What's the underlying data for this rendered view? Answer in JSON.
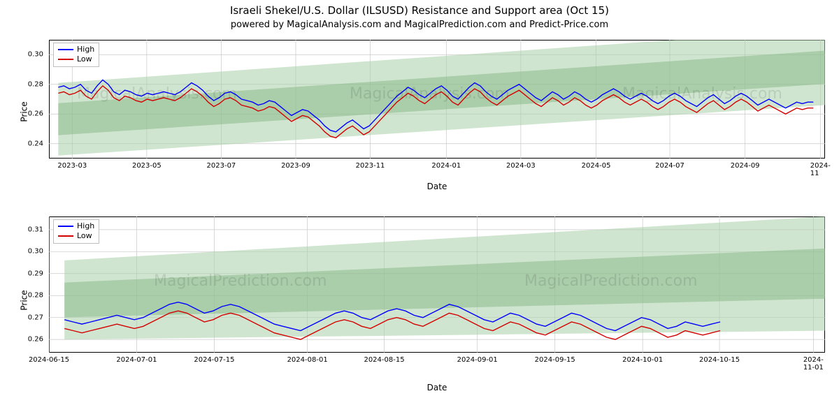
{
  "title": "Israeli Shekel/U.S. Dollar (ILSUSD) Resistance and Support area (Oct 15)",
  "subtitle": "powered by MagicalAnalysis.com and MagicalPrediction.com and Predict-Price.com",
  "legend": {
    "high": "High",
    "low": "Low"
  },
  "axis": {
    "x_label": "Date",
    "y_label": "Price"
  },
  "colors": {
    "high_line": "#0000ff",
    "low_line": "#d40000",
    "cone_fill": "#a9cfa9",
    "cone_fill_dark": "#8bb98b",
    "grid": "#c8c8c8",
    "axis_line": "#000000",
    "background": "#ffffff",
    "watermark": "#000000"
  },
  "watermarks": {
    "top": [
      "MagicalAnalysis.com",
      "MagicalAnalysis.com",
      "MagicalAnalysis.com"
    ],
    "bottom": [
      "MagicalPrediction.com",
      "MagicalPrediction.com"
    ]
  },
  "chart_top": {
    "type": "line",
    "ylim": [
      0.23,
      0.31
    ],
    "yticks": [
      0.24,
      0.26,
      0.28,
      0.3
    ],
    "xticks": [
      "2023-03",
      "2023-05",
      "2023-07",
      "2023-09",
      "2023-11",
      "2024-01",
      "2024-03",
      "2024-05",
      "2024-07",
      "2024-09",
      "2024-11"
    ],
    "xtick_pos": [
      0.03,
      0.126,
      0.222,
      0.318,
      0.414,
      0.512,
      0.608,
      0.705,
      0.8,
      0.897,
      0.994
    ],
    "cone_upper": {
      "y_start": 0.281,
      "y_end": 0.317
    },
    "cone_lower": {
      "y_start": 0.232,
      "y_end": 0.266
    },
    "cone_x_start": 0.012,
    "high": [
      0.278,
      0.279,
      0.277,
      0.278,
      0.28,
      0.276,
      0.274,
      0.279,
      0.283,
      0.28,
      0.275,
      0.273,
      0.276,
      0.275,
      0.273,
      0.272,
      0.274,
      0.273,
      0.274,
      0.275,
      0.274,
      0.273,
      0.275,
      0.278,
      0.281,
      0.279,
      0.276,
      0.272,
      0.269,
      0.271,
      0.274,
      0.275,
      0.273,
      0.27,
      0.269,
      0.268,
      0.266,
      0.267,
      0.269,
      0.268,
      0.265,
      0.262,
      0.259,
      0.261,
      0.263,
      0.262,
      0.259,
      0.256,
      0.252,
      0.249,
      0.248,
      0.251,
      0.254,
      0.256,
      0.253,
      0.25,
      0.252,
      0.256,
      0.26,
      0.264,
      0.268,
      0.272,
      0.275,
      0.278,
      0.276,
      0.273,
      0.271,
      0.274,
      0.277,
      0.279,
      0.276,
      0.272,
      0.27,
      0.274,
      0.278,
      0.281,
      0.279,
      0.275,
      0.272,
      0.27,
      0.273,
      0.276,
      0.278,
      0.28,
      0.277,
      0.274,
      0.271,
      0.269,
      0.272,
      0.275,
      0.273,
      0.27,
      0.272,
      0.275,
      0.273,
      0.27,
      0.268,
      0.27,
      0.273,
      0.275,
      0.277,
      0.275,
      0.272,
      0.27,
      0.272,
      0.274,
      0.272,
      0.269,
      0.267,
      0.269,
      0.272,
      0.274,
      0.272,
      0.269,
      0.267,
      0.265,
      0.268,
      0.271,
      0.273,
      0.27,
      0.267,
      0.269,
      0.272,
      0.274,
      0.272,
      0.269,
      0.266,
      0.268,
      0.27,
      0.268,
      0.266,
      0.264,
      0.266,
      0.268,
      0.267,
      0.268,
      0.268
    ],
    "low": [
      0.274,
      0.275,
      0.273,
      0.274,
      0.276,
      0.272,
      0.27,
      0.275,
      0.279,
      0.276,
      0.271,
      0.269,
      0.272,
      0.271,
      0.269,
      0.268,
      0.27,
      0.269,
      0.27,
      0.271,
      0.27,
      0.269,
      0.271,
      0.274,
      0.277,
      0.275,
      0.272,
      0.268,
      0.265,
      0.267,
      0.27,
      0.271,
      0.269,
      0.266,
      0.265,
      0.264,
      0.262,
      0.263,
      0.265,
      0.264,
      0.261,
      0.258,
      0.255,
      0.257,
      0.259,
      0.258,
      0.255,
      0.252,
      0.248,
      0.245,
      0.244,
      0.247,
      0.25,
      0.252,
      0.249,
      0.246,
      0.248,
      0.252,
      0.256,
      0.26,
      0.264,
      0.268,
      0.271,
      0.274,
      0.272,
      0.269,
      0.267,
      0.27,
      0.273,
      0.275,
      0.272,
      0.268,
      0.266,
      0.27,
      0.274,
      0.277,
      0.275,
      0.271,
      0.268,
      0.266,
      0.269,
      0.272,
      0.274,
      0.276,
      0.273,
      0.27,
      0.267,
      0.265,
      0.268,
      0.271,
      0.269,
      0.266,
      0.268,
      0.271,
      0.269,
      0.266,
      0.264,
      0.266,
      0.269,
      0.271,
      0.273,
      0.271,
      0.268,
      0.266,
      0.268,
      0.27,
      0.268,
      0.265,
      0.263,
      0.265,
      0.268,
      0.27,
      0.268,
      0.265,
      0.263,
      0.261,
      0.264,
      0.267,
      0.269,
      0.266,
      0.263,
      0.265,
      0.268,
      0.27,
      0.268,
      0.265,
      0.262,
      0.264,
      0.266,
      0.264,
      0.262,
      0.26,
      0.262,
      0.264,
      0.263,
      0.264,
      0.264
    ]
  },
  "chart_bottom": {
    "type": "line",
    "ylim": [
      0.254,
      0.316
    ],
    "yticks": [
      0.26,
      0.27,
      0.28,
      0.29,
      0.3,
      0.31
    ],
    "xticks": [
      "2024-06-15",
      "2024-07-01",
      "2024-07-15",
      "2024-08-01",
      "2024-08-15",
      "2024-09-01",
      "2024-09-15",
      "2024-10-01",
      "2024-10-15",
      "2024-11-01"
    ],
    "xtick_pos": [
      0.0,
      0.113,
      0.213,
      0.333,
      0.432,
      0.552,
      0.652,
      0.765,
      0.864,
      0.985
    ],
    "cone_upper": {
      "y_start": 0.296,
      "y_end": 0.316
    },
    "cone_lower": {
      "y_start": 0.26,
      "y_end": 0.264
    },
    "cone_x_start": 0.02,
    "series_x_end": 0.865,
    "high": [
      0.269,
      0.268,
      0.267,
      0.268,
      0.269,
      0.27,
      0.271,
      0.27,
      0.269,
      0.27,
      0.272,
      0.274,
      0.276,
      0.277,
      0.276,
      0.274,
      0.272,
      0.273,
      0.275,
      0.276,
      0.275,
      0.273,
      0.271,
      0.269,
      0.267,
      0.266,
      0.265,
      0.264,
      0.266,
      0.268,
      0.27,
      0.272,
      0.273,
      0.272,
      0.27,
      0.269,
      0.271,
      0.273,
      0.274,
      0.273,
      0.271,
      0.27,
      0.272,
      0.274,
      0.276,
      0.275,
      0.273,
      0.271,
      0.269,
      0.268,
      0.27,
      0.272,
      0.271,
      0.269,
      0.267,
      0.266,
      0.268,
      0.27,
      0.272,
      0.271,
      0.269,
      0.267,
      0.265,
      0.264,
      0.266,
      0.268,
      0.27,
      0.269,
      0.267,
      0.265,
      0.266,
      0.268,
      0.267,
      0.266,
      0.267,
      0.268
    ],
    "low": [
      0.265,
      0.264,
      0.263,
      0.264,
      0.265,
      0.266,
      0.267,
      0.266,
      0.265,
      0.266,
      0.268,
      0.27,
      0.272,
      0.273,
      0.272,
      0.27,
      0.268,
      0.269,
      0.271,
      0.272,
      0.271,
      0.269,
      0.267,
      0.265,
      0.263,
      0.262,
      0.261,
      0.26,
      0.262,
      0.264,
      0.266,
      0.268,
      0.269,
      0.268,
      0.266,
      0.265,
      0.267,
      0.269,
      0.27,
      0.269,
      0.267,
      0.266,
      0.268,
      0.27,
      0.272,
      0.271,
      0.269,
      0.267,
      0.265,
      0.264,
      0.266,
      0.268,
      0.267,
      0.265,
      0.263,
      0.262,
      0.264,
      0.266,
      0.268,
      0.267,
      0.265,
      0.263,
      0.261,
      0.26,
      0.262,
      0.264,
      0.266,
      0.265,
      0.263,
      0.261,
      0.262,
      0.264,
      0.263,
      0.262,
      0.263,
      0.264
    ]
  }
}
